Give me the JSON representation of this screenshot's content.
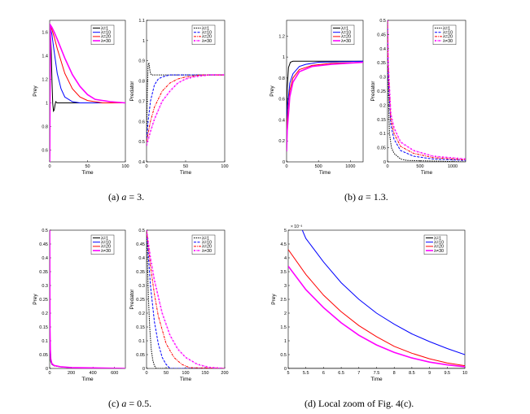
{
  "legend_labels": [
    "λ=1",
    "λ=10",
    "λ=20",
    "λ=30"
  ],
  "captions": [
    {
      "label": "(a)",
      "var": "a",
      "text": "= 3."
    },
    {
      "label": "(b)",
      "var": "a",
      "text": "= 1.3."
    },
    {
      "label": "(c)",
      "var": "a",
      "text": "= 0.5."
    },
    {
      "label": "(d)",
      "var": "",
      "text": "Local zoom of Fig. 4(c)."
    }
  ],
  "series_colors": [
    "#000000",
    "#0000ff",
    "#ff0000",
    "#ff00ff"
  ],
  "chart_data": [
    {
      "id": "a-prey",
      "type": "line",
      "title": "",
      "xlabel": "Time",
      "ylabel": "Prey",
      "xlim": [
        0,
        100
      ],
      "ylim": [
        0.5,
        1.7
      ],
      "xticks": [
        "0",
        "50",
        "100"
      ],
      "yticks": [
        "0.6",
        "0.8",
        "1",
        "1.2",
        "1.4",
        "1.6"
      ],
      "series": [
        {
          "name": "λ=1",
          "x": [
            0,
            1,
            2,
            3,
            4,
            5,
            6,
            7,
            8,
            10,
            14,
            20,
            100
          ],
          "y": [
            0.5,
            1.6,
            1.45,
            1.2,
            1.0,
            0.93,
            0.94,
            0.98,
            1.01,
            1.0,
            1.0,
            1.0,
            1.0
          ]
        },
        {
          "name": "λ=10",
          "x": [
            0,
            1,
            3,
            5,
            10,
            15,
            20,
            30,
            40,
            60,
            100
          ],
          "y": [
            0.5,
            1.63,
            1.58,
            1.48,
            1.25,
            1.12,
            1.05,
            1.01,
            1.0,
            1.0,
            1.0
          ]
        },
        {
          "name": "λ=20",
          "x": [
            0,
            1,
            3,
            6,
            10,
            20,
            30,
            40,
            50,
            70,
            100
          ],
          "y": [
            0.5,
            1.65,
            1.62,
            1.56,
            1.46,
            1.25,
            1.12,
            1.05,
            1.02,
            1.0,
            1.0
          ]
        },
        {
          "name": "λ=30",
          "x": [
            0,
            1,
            3,
            6,
            10,
            20,
            30,
            40,
            50,
            60,
            80,
            100
          ],
          "y": [
            0.5,
            1.66,
            1.64,
            1.6,
            1.54,
            1.38,
            1.24,
            1.14,
            1.07,
            1.03,
            1.01,
            1.0
          ]
        }
      ]
    },
    {
      "id": "a-pred",
      "type": "line",
      "title": "",
      "xlabel": "Time",
      "ylabel": "Predator",
      "xlim": [
        0,
        100
      ],
      "ylim": [
        0.4,
        1.1
      ],
      "xticks": [
        "0",
        "50",
        "100"
      ],
      "yticks": [
        "0.4",
        "0.5",
        "0.6",
        "0.7",
        "0.8",
        "0.9",
        "1",
        "1.1"
      ],
      "series": [
        {
          "name": "λ=1",
          "x": [
            0,
            1,
            2,
            3,
            4,
            5,
            6,
            8,
            10,
            100
          ],
          "y": [
            0.5,
            0.75,
            0.88,
            0.89,
            0.86,
            0.84,
            0.83,
            0.83,
            0.83,
            0.83
          ]
        },
        {
          "name": "λ=10",
          "x": [
            0,
            2,
            5,
            10,
            15,
            20,
            30,
            40,
            100
          ],
          "y": [
            0.5,
            0.6,
            0.7,
            0.78,
            0.81,
            0.82,
            0.83,
            0.83,
            0.83
          ]
        },
        {
          "name": "λ=20",
          "x": [
            0,
            5,
            10,
            20,
            30,
            40,
            50,
            70,
            100
          ],
          "y": [
            0.5,
            0.6,
            0.67,
            0.75,
            0.79,
            0.81,
            0.82,
            0.83,
            0.83
          ]
        },
        {
          "name": "λ=30",
          "x": [
            0,
            5,
            10,
            20,
            30,
            40,
            50,
            60,
            80,
            100
          ],
          "y": [
            0.48,
            0.55,
            0.61,
            0.7,
            0.75,
            0.79,
            0.81,
            0.82,
            0.83,
            0.83
          ]
        }
      ]
    },
    {
      "id": "b-prey",
      "type": "line",
      "title": "",
      "xlabel": "Time",
      "ylabel": "Prey",
      "xlim": [
        0,
        1200
      ],
      "ylim": [
        0,
        1.35
      ],
      "xticks": [
        "0",
        "500",
        "1000"
      ],
      "yticks": [
        "0",
        "0.2",
        "0.4",
        "0.6",
        "0.8",
        "1",
        "1.2"
      ],
      "series": [
        {
          "name": "λ=1",
          "x": [
            0,
            10,
            30,
            60,
            100,
            200,
            1200
          ],
          "y": [
            0.1,
            0.7,
            0.9,
            0.95,
            0.96,
            0.96,
            0.96
          ]
        },
        {
          "name": "λ=10",
          "x": [
            0,
            10,
            50,
            100,
            200,
            300,
            500,
            1200
          ],
          "y": [
            0.1,
            0.5,
            0.75,
            0.84,
            0.91,
            0.93,
            0.95,
            0.96
          ]
        },
        {
          "name": "λ=20",
          "x": [
            0,
            10,
            50,
            100,
            200,
            400,
            700,
            1200
          ],
          "y": [
            0.1,
            0.4,
            0.68,
            0.8,
            0.88,
            0.92,
            0.94,
            0.95
          ]
        },
        {
          "name": "λ=30",
          "x": [
            0,
            10,
            50,
            100,
            200,
            400,
            700,
            1200
          ],
          "y": [
            0.1,
            0.3,
            0.62,
            0.76,
            0.86,
            0.91,
            0.93,
            0.95
          ]
        }
      ]
    },
    {
      "id": "b-pred",
      "type": "line",
      "title": "",
      "xlabel": "Time",
      "ylabel": "Predator",
      "xlim": [
        0,
        1200
      ],
      "ylim": [
        0,
        0.5
      ],
      "xticks": [
        "0",
        "500",
        "1000"
      ],
      "yticks": [
        "0",
        "0.05",
        "0.1",
        "0.15",
        "0.2",
        "0.25",
        "0.3",
        "0.35",
        "0.4",
        "0.45",
        "0.5"
      ],
      "series": [
        {
          "name": "λ=1",
          "x": [
            0,
            10,
            30,
            60,
            100,
            200,
            300,
            1200
          ],
          "y": [
            0.5,
            0.25,
            0.1,
            0.05,
            0.03,
            0.01,
            0.005,
            0.0
          ]
        },
        {
          "name": "λ=10",
          "x": [
            0,
            10,
            50,
            100,
            200,
            400,
            700,
            1200
          ],
          "y": [
            0.5,
            0.3,
            0.13,
            0.08,
            0.04,
            0.02,
            0.01,
            0.005
          ]
        },
        {
          "name": "λ=20",
          "x": [
            0,
            10,
            50,
            100,
            200,
            400,
            700,
            1200
          ],
          "y": [
            0.5,
            0.33,
            0.15,
            0.1,
            0.055,
            0.03,
            0.015,
            0.007
          ]
        },
        {
          "name": "λ=30",
          "x": [
            0,
            10,
            50,
            100,
            200,
            400,
            700,
            1200
          ],
          "y": [
            0.5,
            0.35,
            0.17,
            0.12,
            0.07,
            0.04,
            0.02,
            0.01
          ]
        }
      ]
    },
    {
      "id": "c-prey",
      "type": "line",
      "title": "",
      "xlabel": "Time",
      "ylabel": "Prey",
      "xlim": [
        0,
        700
      ],
      "ylim": [
        0,
        0.5
      ],
      "xticks": [
        "0",
        "200",
        "400",
        "600"
      ],
      "yticks": [
        "0",
        "0.05",
        "0.1",
        "0.15",
        "0.2",
        "0.25",
        "0.3",
        "0.35",
        "0.4",
        "0.45",
        "0.5"
      ],
      "series": [
        {
          "name": "λ=1",
          "x": [
            0,
            1,
            3,
            6,
            10,
            20,
            40,
            100,
            200,
            700
          ],
          "y": [
            0.5,
            0.2,
            0.08,
            0.04,
            0.025,
            0.015,
            0.01,
            0.006,
            0.003,
            0.0
          ]
        },
        {
          "name": "λ=10",
          "x": [
            0,
            1,
            3,
            6,
            10,
            20,
            40,
            100,
            200,
            700
          ],
          "y": [
            0.5,
            0.25,
            0.1,
            0.05,
            0.03,
            0.016,
            0.01,
            0.006,
            0.003,
            0.0
          ]
        },
        {
          "name": "λ=20",
          "x": [
            0,
            1,
            3,
            6,
            10,
            20,
            40,
            100,
            200,
            700
          ],
          "y": [
            0.5,
            0.3,
            0.12,
            0.06,
            0.032,
            0.017,
            0.01,
            0.006,
            0.003,
            0.0
          ]
        },
        {
          "name": "λ=30",
          "x": [
            0,
            1,
            3,
            6,
            10,
            20,
            40,
            100,
            200,
            700
          ],
          "y": [
            0.5,
            0.35,
            0.14,
            0.07,
            0.035,
            0.018,
            0.011,
            0.006,
            0.003,
            0.0
          ]
        }
      ]
    },
    {
      "id": "c-pred",
      "type": "line",
      "title": "",
      "xlabel": "Time",
      "ylabel": "Predator",
      "xlim": [
        0,
        200
      ],
      "ylim": [
        0,
        0.5
      ],
      "xticks": [
        "0",
        "50",
        "100",
        "150",
        "200"
      ],
      "yticks": [
        "0",
        "0.05",
        "0.1",
        "0.15",
        "0.2",
        "0.25",
        "0.3",
        "0.35",
        "0.4",
        "0.45",
        "0.5"
      ],
      "series": [
        {
          "name": "λ=1",
          "x": [
            0,
            2,
            5,
            8,
            12,
            16,
            20,
            25,
            200
          ],
          "y": [
            0.5,
            0.4,
            0.25,
            0.15,
            0.07,
            0.03,
            0.01,
            0.0,
            0.0
          ]
        },
        {
          "name": "λ=10",
          "x": [
            0,
            5,
            10,
            20,
            30,
            40,
            50,
            60,
            200
          ],
          "y": [
            0.5,
            0.4,
            0.3,
            0.17,
            0.09,
            0.04,
            0.015,
            0.0,
            0.0
          ]
        },
        {
          "name": "λ=20",
          "x": [
            0,
            10,
            20,
            30,
            50,
            70,
            90,
            110,
            200
          ],
          "y": [
            0.5,
            0.37,
            0.27,
            0.19,
            0.09,
            0.04,
            0.015,
            0.003,
            0.0
          ]
        },
        {
          "name": "λ=30",
          "x": [
            0,
            10,
            20,
            40,
            60,
            80,
            100,
            130,
            160,
            200
          ],
          "y": [
            0.5,
            0.4,
            0.32,
            0.2,
            0.12,
            0.07,
            0.04,
            0.015,
            0.004,
            0.0
          ]
        }
      ]
    },
    {
      "id": "d-zoom",
      "type": "line",
      "title": "",
      "xlabel": "Time",
      "ylabel": "Prey",
      "y_multiplier": "× 10⁻³",
      "xlim": [
        5,
        10
      ],
      "ylim": [
        0,
        5
      ],
      "xticks": [
        "5",
        "5.5",
        "6",
        "6.5",
        "7",
        "7.5",
        "8",
        "8.5",
        "9",
        "9.5",
        "10"
      ],
      "yticks": [
        "0",
        "0.5",
        "1",
        "1.5",
        "2",
        "2.5",
        "3",
        "3.5",
        "4",
        "4.5",
        "5"
      ],
      "series": [
        {
          "name": "λ=1",
          "x": [
            5,
            10
          ],
          "y": [
            0.0,
            0.0
          ]
        },
        {
          "name": "λ=10",
          "x": [
            5.4,
            5.5,
            6,
            6.5,
            7,
            7.5,
            8,
            8.5,
            9,
            9.5,
            10
          ],
          "y": [
            5.0,
            4.7,
            3.85,
            3.1,
            2.5,
            2.0,
            1.6,
            1.25,
            0.97,
            0.72,
            0.5
          ]
        },
        {
          "name": "λ=20",
          "x": [
            5,
            5.5,
            6,
            6.5,
            7,
            7.5,
            8,
            8.5,
            9,
            9.5,
            10
          ],
          "y": [
            4.3,
            3.4,
            2.65,
            2.05,
            1.55,
            1.15,
            0.8,
            0.55,
            0.35,
            0.2,
            0.1
          ]
        },
        {
          "name": "λ=30",
          "x": [
            5,
            5.5,
            6,
            6.5,
            7,
            7.5,
            8,
            8.5,
            9,
            9.5,
            10
          ],
          "y": [
            3.7,
            2.85,
            2.2,
            1.65,
            1.2,
            0.85,
            0.58,
            0.38,
            0.23,
            0.13,
            0.06
          ]
        }
      ]
    }
  ]
}
